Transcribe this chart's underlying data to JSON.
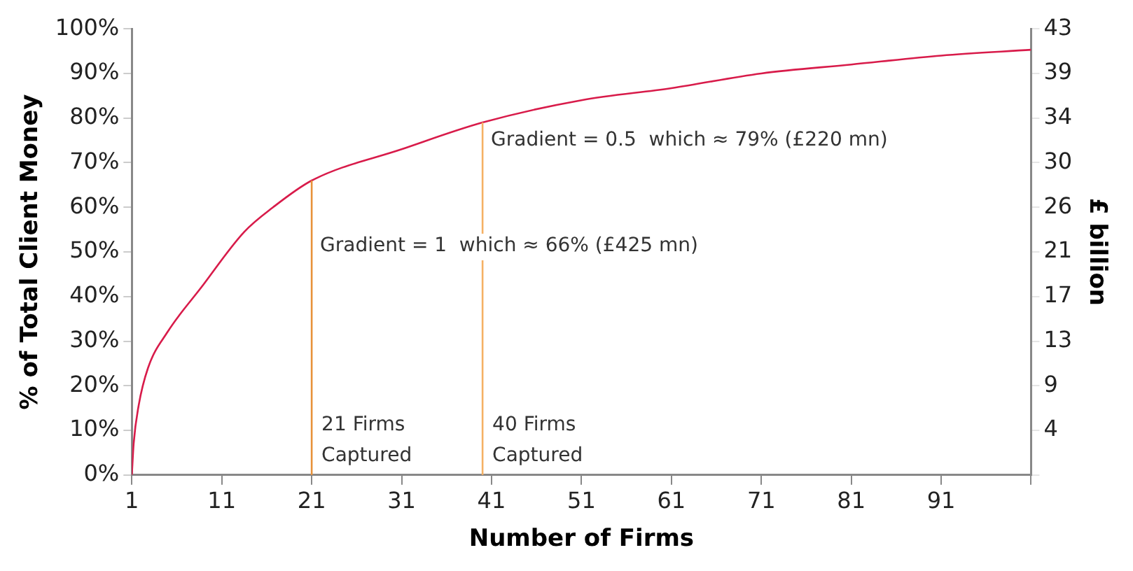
{
  "chart_data": {
    "type": "line",
    "xlabel": "Number of Firms",
    "ylabel": "% of Total Client Money",
    "y2label": "£ billion",
    "x": [
      1,
      1.2,
      1.75,
      2.8,
      4.95,
      8.7,
      13.5,
      16.7,
      21,
      31,
      40,
      51,
      61,
      71,
      81,
      91,
      101
    ],
    "series": [
      {
        "color": "#d81b4a",
        "values": [
          0,
          7,
          15.5,
          24,
          32,
          42,
          54.5,
          60,
          66,
          73,
          79,
          84,
          86.7,
          90,
          92,
          94,
          95.3
        ]
      }
    ],
    "xlim": [
      1,
      101
    ],
    "xticks": [
      1,
      11,
      21,
      31,
      41,
      51,
      61,
      71,
      81,
      91,
      {
        "value": 101,
        "label": null
      }
    ],
    "ylim": [
      0,
      100
    ],
    "yticks": [
      {
        "value": 0,
        "label": "0%"
      },
      {
        "value": 10,
        "label": "10%"
      },
      {
        "value": 20,
        "label": "20%"
      },
      {
        "value": 30,
        "label": "30%"
      },
      {
        "value": 40,
        "label": "40%"
      },
      {
        "value": 50,
        "label": "50%"
      },
      {
        "value": 60,
        "label": "60%"
      },
      {
        "value": 70,
        "label": "70%"
      },
      {
        "value": 80,
        "label": "80%"
      },
      {
        "value": 90,
        "label": "90%"
      },
      {
        "value": 100,
        "label": "100%"
      }
    ],
    "y2lim": [
      0,
      43
    ],
    "y2ticks": [
      {
        "value": 0,
        "label": null
      },
      {
        "value": 4.3,
        "label": "4"
      },
      {
        "value": 8.6,
        "label": "9"
      },
      {
        "value": 12.9,
        "label": "13"
      },
      {
        "value": 17.2,
        "label": "17"
      },
      {
        "value": 21.5,
        "label": "21"
      },
      {
        "value": 25.8,
        "label": "26"
      },
      {
        "value": 30.1,
        "label": "30"
      },
      {
        "value": 34.4,
        "label": "34"
      },
      {
        "value": 38.7,
        "label": "39"
      },
      {
        "value": 43,
        "label": "43"
      }
    ],
    "ref_lines": [
      {
        "axis": "x",
        "value": 21,
        "label": "21 Firms Captured",
        "color": "#e8923a"
      },
      {
        "axis": "x",
        "value": 40,
        "label": "40 Firms Captured",
        "color": "#f5b064"
      }
    ],
    "annotations": [
      {
        "text": "Gradient = 1  which ≈ 66% (£425 mn)",
        "x": 21,
        "y": 66
      },
      {
        "text": "Gradient = 0.5  which ≈ 79% (£220 mn)",
        "x": 40,
        "y": 79
      }
    ],
    "grid": false,
    "legend": false,
    "marker": "none",
    "line_style": "solid"
  }
}
